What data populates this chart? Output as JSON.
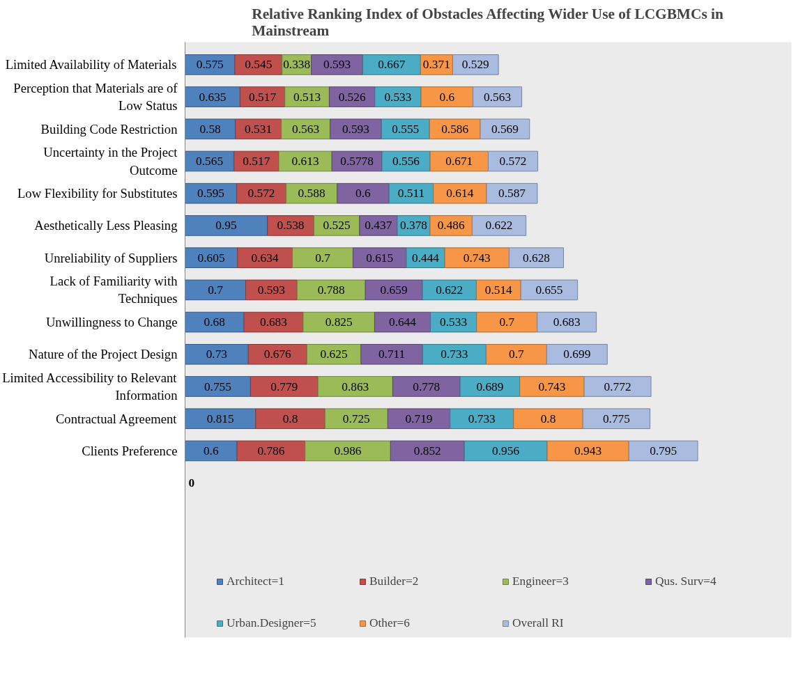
{
  "chart_data": {
    "type": "bar",
    "orientation": "horizontal",
    "stacked": true,
    "data_labels": true,
    "title": "Relative Ranking Index of Obstacles Affecting Wider Use of LCGBMCs in Mainstream",
    "categories": [
      "Limited Availability of Materials",
      "Perception that Materials are of Low Status",
      "Building Code Restriction",
      "Uncertainty in the Project Outcome",
      "Low Flexibility for Substitutes",
      "Aesthetically Less Pleasing",
      "Unreliability of Suppliers",
      "Lack of Familiarity with Techniques",
      "Unwillingness to Change",
      "Nature of the Project Design",
      "Limited Accessibility to Relevant Information",
      "Contractual Agreement",
      "Clients Preference"
    ],
    "series": [
      {
        "name": "Architect=1",
        "color": "#4f81bd",
        "values": [
          0.575,
          0.635,
          0.58,
          0.565,
          0.595,
          0.95,
          0.605,
          0.7,
          0.68,
          0.73,
          0.755,
          0.815,
          0.6
        ]
      },
      {
        "name": "Builder=2",
        "color": "#c0504d",
        "values": [
          0.545,
          0.517,
          0.531,
          0.517,
          0.572,
          0.538,
          0.634,
          0.593,
          0.683,
          0.676,
          0.779,
          0.8,
          0.786
        ]
      },
      {
        "name": "Engineer=3",
        "color": "#9bbb59",
        "values": [
          0.338,
          0.513,
          0.563,
          0.613,
          0.588,
          0.525,
          0.7,
          0.788,
          0.825,
          0.625,
          0.863,
          0.725,
          0.986
        ]
      },
      {
        "name": "Qus. Surv=4",
        "color": "#8064a2",
        "values": [
          0.593,
          0.526,
          0.593,
          0.5778,
          0.6,
          0.437,
          0.615,
          0.659,
          0.644,
          0.711,
          0.778,
          0.719,
          0.852
        ]
      },
      {
        "name": "Urban.Designer=5",
        "color": "#4bacc6",
        "values": [
          0.667,
          0.533,
          0.555,
          0.556,
          0.511,
          0.378,
          0.444,
          0.622,
          0.533,
          0.733,
          0.689,
          0.733,
          0.956
        ]
      },
      {
        "name": "Other=6",
        "color": "#f79646",
        "values": [
          0.371,
          0.6,
          0.586,
          0.671,
          0.614,
          0.486,
          0.743,
          0.514,
          0.7,
          0.7,
          0.743,
          0.8,
          0.943
        ]
      },
      {
        "name": "Overall RI",
        "color": "#a9bce0",
        "values": [
          0.529,
          0.563,
          0.569,
          0.572,
          0.587,
          0.622,
          0.628,
          0.655,
          0.683,
          0.699,
          0.772,
          0.775,
          0.795
        ]
      }
    ],
    "xlim": [
      0,
      7
    ],
    "tick_labels": "y",
    "annotations": [
      "0"
    ],
    "legend": "bottom",
    "grid": false
  }
}
